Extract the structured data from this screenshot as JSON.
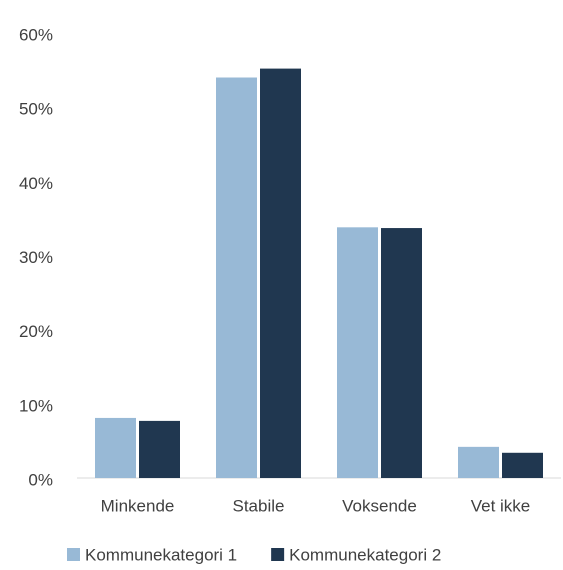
{
  "chart_data": {
    "type": "bar",
    "categories": [
      "Minkende",
      "Stabile",
      "Voksende",
      "Vet ikke"
    ],
    "series": [
      {
        "name": "Kommunekategori 1",
        "color": "#98b9d6",
        "values": [
          8.1,
          54.0,
          33.8,
          4.2
        ]
      },
      {
        "name": "Kommunekategori 2",
        "color": "#203750",
        "values": [
          7.7,
          55.2,
          33.7,
          3.4
        ]
      }
    ],
    "ylim": [
      0,
      60
    ],
    "yticks": [
      {
        "value": 0,
        "label": "0%"
      },
      {
        "value": 10,
        "label": "10%"
      },
      {
        "value": 20,
        "label": "20%"
      },
      {
        "value": 30,
        "label": "30%"
      },
      {
        "value": 40,
        "label": "40%"
      },
      {
        "value": 50,
        "label": "50%"
      },
      {
        "value": 60,
        "label": "60%"
      }
    ],
    "legend": "bottom"
  }
}
